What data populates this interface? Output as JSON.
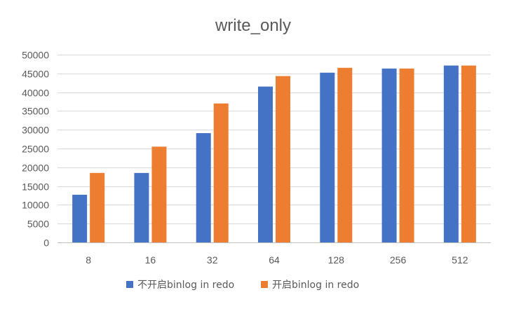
{
  "chart_data": {
    "type": "bar",
    "title": "write_only",
    "xlabel": "",
    "ylabel": "",
    "categories": [
      "8",
      "16",
      "32",
      "64",
      "128",
      "256",
      "512"
    ],
    "series": [
      {
        "name": "不开启binlog in redo",
        "color": "#4472C4",
        "values": [
          12700,
          18500,
          29100,
          41500,
          45200,
          46300,
          47100
        ]
      },
      {
        "name": "开启binlog in redo",
        "color": "#ED7D31",
        "values": [
          18500,
          25500,
          37000,
          44300,
          46500,
          46300,
          47100
        ]
      }
    ],
    "ylim": [
      0,
      50000
    ],
    "yticks": [
      0,
      5000,
      10000,
      15000,
      20000,
      25000,
      30000,
      35000,
      40000,
      45000,
      50000
    ],
    "grid": true,
    "legend_position": "bottom"
  }
}
